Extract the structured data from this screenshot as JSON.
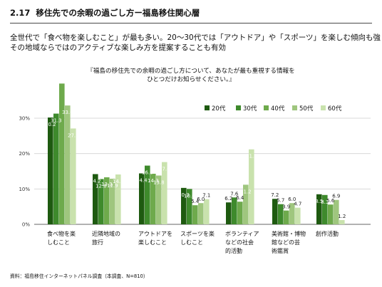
{
  "header": {
    "section_number": "2.17",
    "title": "移住先での余暇の過ごし方ー福島移住関心層"
  },
  "summary": {
    "line1": "全世代で「食べ物を楽しむこと」が最も多い。20～30代では「アウトドア」や「スポーツ」を楽しむ傾向も強く、",
    "line2": "その地域ならではのアクティブな楽しみ方を提案することも有効"
  },
  "question": {
    "line1": "『福島の移住先での余暇の過ごし方について、あなたが最も重視する情報を",
    "line2": "ひとつだけお知らせください。』"
  },
  "source": "資料：福島移住インターネットパネル調査（本調査、N=810）",
  "colors": {
    "series": [
      "#1e5a10",
      "#3e8a2c",
      "#6eaa4c",
      "#9fc67e",
      "#c9e2ad"
    ]
  },
  "chart_data": {
    "type": "bar",
    "categories": [
      [
        "食べ物を楽",
        "しむこと"
      ],
      [
        "近隣地域の",
        "旅行"
      ],
      [
        "アウトドアを",
        "楽しむこと"
      ],
      [
        "スポーツを楽",
        "しむこと"
      ],
      [
        "ボランティア",
        "などの社会",
        "的活動"
      ],
      [
        "美術館・博物",
        "館などの芸",
        "術鑑賞"
      ],
      [
        "創作活動"
      ]
    ],
    "series": [
      {
        "name": "20代",
        "values": [
          30.2,
          14.2,
          14.4,
          10.3,
          6.2,
          7.2,
          8.5
        ]
      },
      {
        "name": "30代",
        "values": [
          31.3,
          12.8,
          16.6,
          10.0,
          7.6,
          5.7,
          8.3
        ]
      },
      {
        "name": "40代",
        "values": [
          39.8,
          13.3,
          14.3,
          5.4,
          6.4,
          3.9,
          5.6
        ]
      },
      {
        "name": "50代",
        "values": [
          33.6,
          12.9,
          13.8,
          6.0,
          11.2,
          6.0,
          6.9
        ]
      },
      {
        "name": "60代",
        "values": [
          27.1,
          14.1,
          17.6,
          7.1,
          21.2,
          4.7,
          1.2
        ]
      }
    ],
    "labels": [
      [
        "30.2",
        "31.3",
        "",
        "33.6",
        "27.1"
      ],
      [
        "14.2",
        "12.8",
        "13.3",
        "12.9",
        "14.1"
      ],
      [
        "14.4",
        "16.6",
        "14.3",
        "13.8",
        "17.6"
      ],
      [
        "10.3",
        "10.0",
        "5.4",
        "6.0",
        "7.1"
      ],
      [
        "6.2",
        "7.6",
        "6.4",
        "11.2",
        "21.2"
      ],
      [
        "7.2",
        "5.7",
        "3.9",
        "6.0",
        "4.7"
      ],
      [
        "8.5",
        "8.3",
        "5.6",
        "6.9",
        "1.2"
      ]
    ],
    "yticks": [
      "0%",
      "10%",
      "20%",
      "30%"
    ],
    "ylim": [
      0,
      42
    ],
    "legend_position": "top-right"
  }
}
